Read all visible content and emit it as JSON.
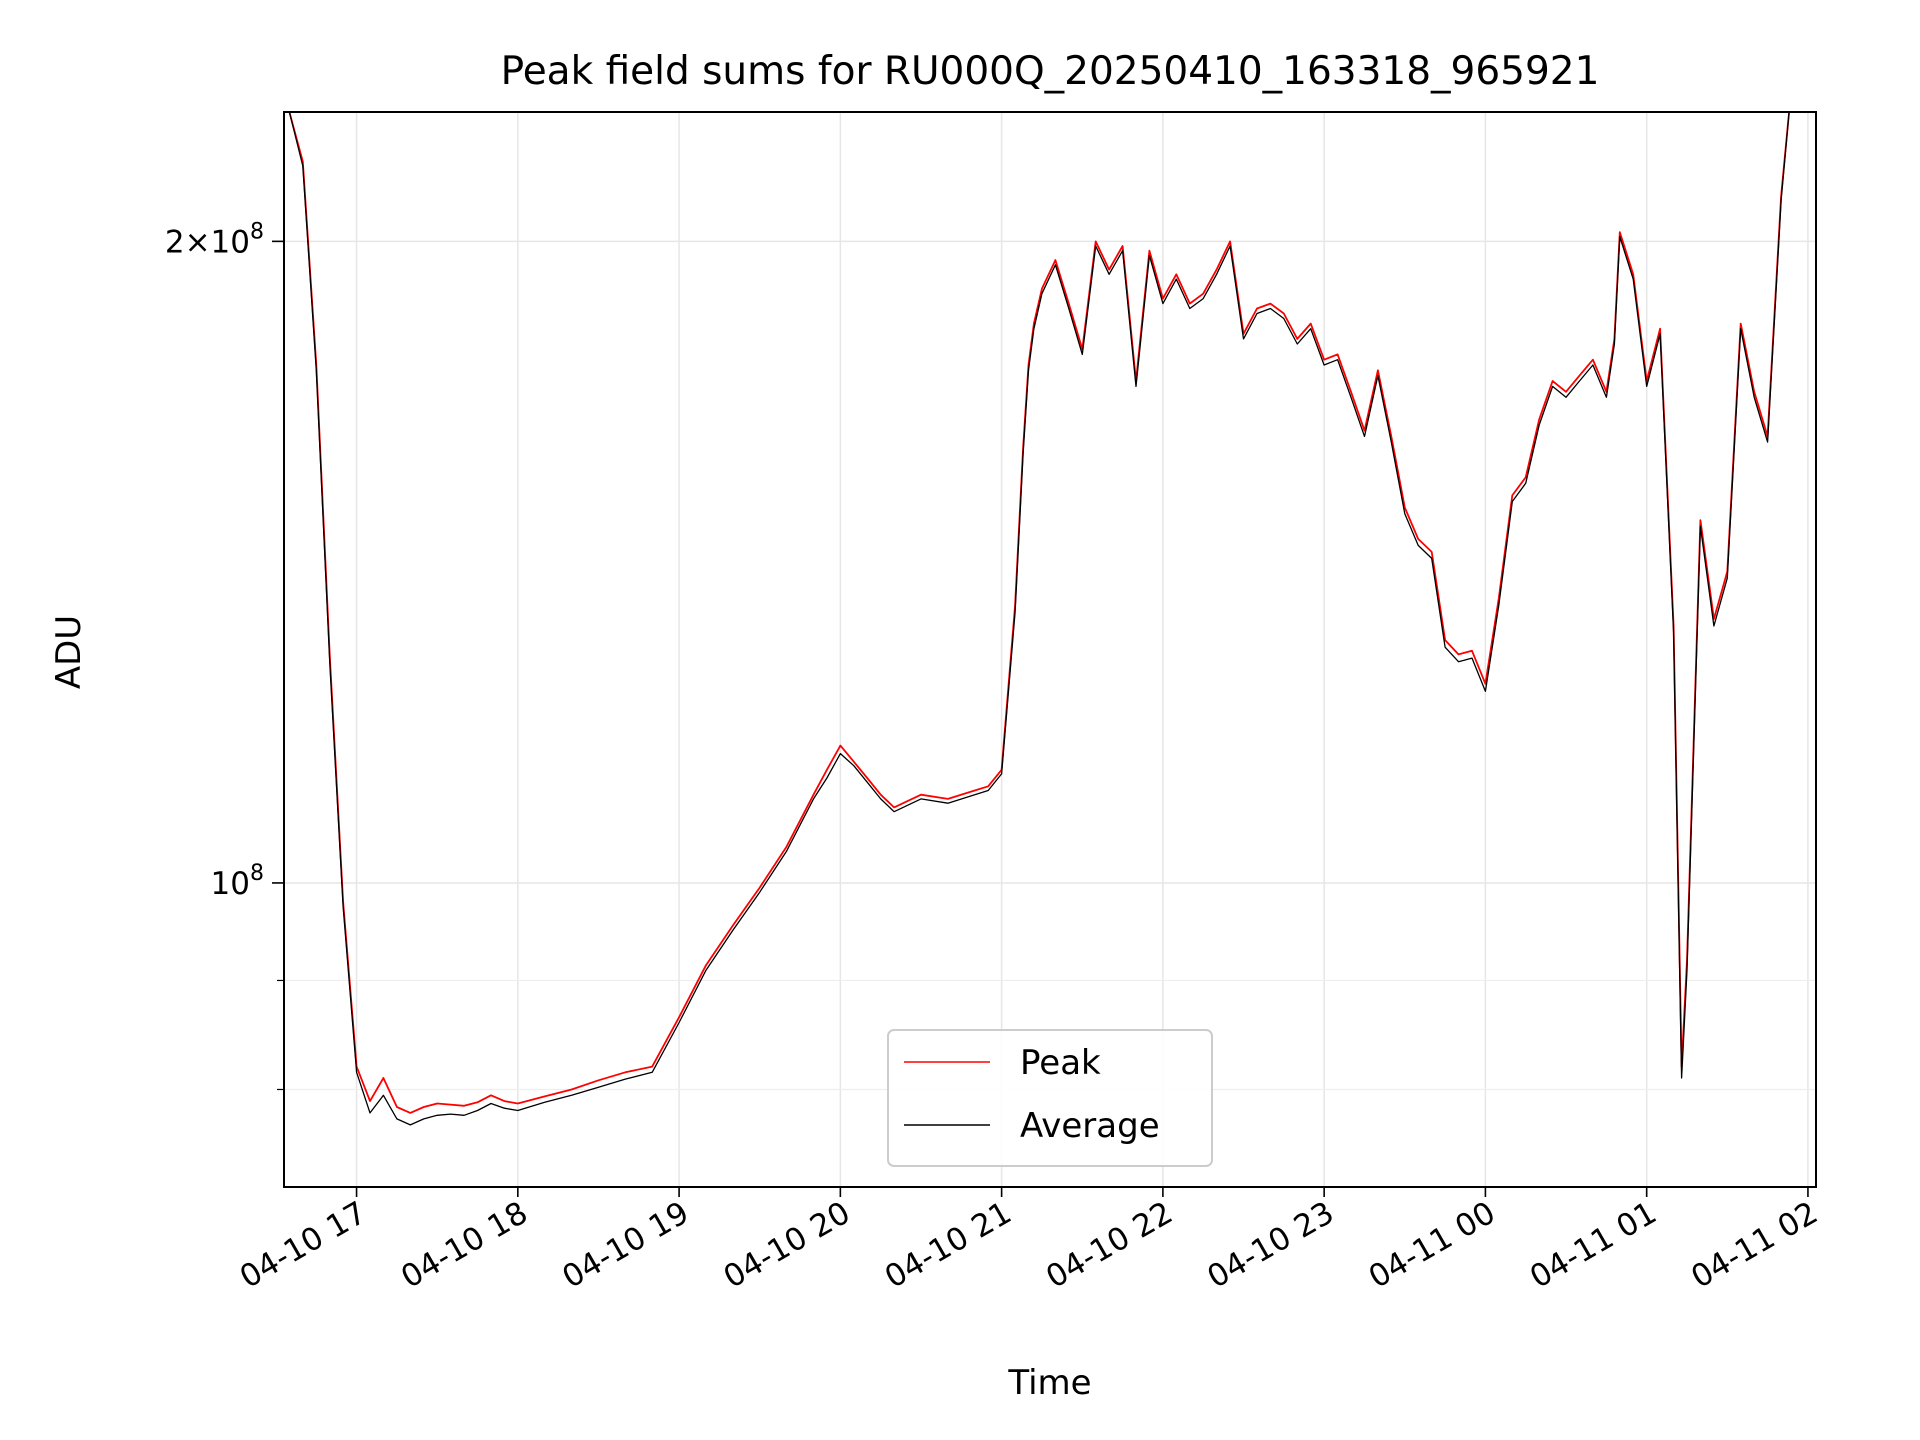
{
  "chart_data": {
    "type": "line",
    "title": "Peak field sums for RU000Q_20250410_163318_965921",
    "xlabel": "Time",
    "ylabel": "ADU",
    "yscale": "log",
    "ylim": [
      72000000,
      230000000
    ],
    "xlim": [
      "2025-04-10 16:33",
      "2025-04-11 02:03"
    ],
    "grid": true,
    "legend_position": "lower-center",
    "x_ticks": [
      "04-10 17",
      "04-10 18",
      "04-10 19",
      "04-10 20",
      "04-10 21",
      "04-10 22",
      "04-10 23",
      "04-11 00",
      "04-11 01",
      "04-11 02"
    ],
    "y_ticks": [
      {
        "value": 100000000,
        "mantissa": "",
        "exponent": "8"
      },
      {
        "value": 200000000,
        "mantissa": "2",
        "exponent": "8"
      }
    ],
    "series": [
      {
        "name": "Peak",
        "color": "#ff0000",
        "x": [
          "2025-04-10 16:35",
          "2025-04-10 16:40",
          "2025-04-10 16:45",
          "2025-04-10 16:50",
          "2025-04-10 16:55",
          "2025-04-10 17:00",
          "2025-04-10 17:05",
          "2025-04-10 17:10",
          "2025-04-10 17:15",
          "2025-04-10 17:20",
          "2025-04-10 17:25",
          "2025-04-10 17:30",
          "2025-04-10 17:35",
          "2025-04-10 17:40",
          "2025-04-10 17:45",
          "2025-04-10 17:50",
          "2025-04-10 17:55",
          "2025-04-10 18:00",
          "2025-04-10 18:10",
          "2025-04-10 18:20",
          "2025-04-10 18:30",
          "2025-04-10 18:40",
          "2025-04-10 18:50",
          "2025-04-10 19:00",
          "2025-04-10 19:10",
          "2025-04-10 19:20",
          "2025-04-10 19:30",
          "2025-04-10 19:40",
          "2025-04-10 19:50",
          "2025-04-10 19:55",
          "2025-04-10 20:00",
          "2025-04-10 20:05",
          "2025-04-10 20:10",
          "2025-04-10 20:15",
          "2025-04-10 20:20",
          "2025-04-10 20:30",
          "2025-04-10 20:40",
          "2025-04-10 20:50",
          "2025-04-10 20:55",
          "2025-04-10 21:00",
          "2025-04-10 21:05",
          "2025-04-10 21:08",
          "2025-04-10 21:10",
          "2025-04-10 21:12",
          "2025-04-10 21:15",
          "2025-04-10 21:20",
          "2025-04-10 21:25",
          "2025-04-10 21:30",
          "2025-04-10 21:35",
          "2025-04-10 21:40",
          "2025-04-10 21:45",
          "2025-04-10 21:50",
          "2025-04-10 21:55",
          "2025-04-10 22:00",
          "2025-04-10 22:05",
          "2025-04-10 22:10",
          "2025-04-10 22:15",
          "2025-04-10 22:20",
          "2025-04-10 22:25",
          "2025-04-10 22:30",
          "2025-04-10 22:35",
          "2025-04-10 22:40",
          "2025-04-10 22:45",
          "2025-04-10 22:50",
          "2025-04-10 22:55",
          "2025-04-10 23:00",
          "2025-04-10 23:05",
          "2025-04-10 23:10",
          "2025-04-10 23:15",
          "2025-04-10 23:20",
          "2025-04-10 23:25",
          "2025-04-10 23:30",
          "2025-04-10 23:35",
          "2025-04-10 23:40",
          "2025-04-10 23:45",
          "2025-04-10 23:50",
          "2025-04-10 23:55",
          "2025-04-11 00:00",
          "2025-04-11 00:05",
          "2025-04-11 00:10",
          "2025-04-11 00:15",
          "2025-04-11 00:20",
          "2025-04-11 00:25",
          "2025-04-11 00:30",
          "2025-04-11 00:35",
          "2025-04-11 00:40",
          "2025-04-11 00:45",
          "2025-04-11 00:48",
          "2025-04-11 00:50",
          "2025-04-11 00:55",
          "2025-04-11 01:00",
          "2025-04-11 01:05",
          "2025-04-11 01:10",
          "2025-04-11 01:13",
          "2025-04-11 01:15",
          "2025-04-11 01:20",
          "2025-04-11 01:25",
          "2025-04-11 01:30",
          "2025-04-11 01:35",
          "2025-04-11 01:40",
          "2025-04-11 01:45",
          "2025-04-11 01:50",
          "2025-04-11 01:53"
        ],
        "values": [
          230000000,
          218000000,
          175000000,
          128000000,
          98000000,
          82000000,
          79000000,
          81000000,
          78500000,
          78000000,
          78500000,
          78800000,
          78700000,
          78600000,
          78900000,
          79500000,
          79000000,
          78800000,
          79400000,
          80000000,
          80800000,
          81500000,
          82000000,
          86500000,
          91500000,
          95500000,
          99500000,
          104000000,
          110000000,
          113000000,
          116000000,
          114000000,
          112000000,
          110000000,
          108500000,
          110000000,
          109500000,
          110500000,
          111000000,
          113000000,
          135000000,
          160000000,
          175000000,
          183000000,
          190000000,
          196000000,
          187000000,
          178000000,
          200000000,
          194000000,
          199000000,
          172000000,
          198000000,
          188000000,
          193000000,
          187000000,
          189000000,
          194000000,
          200000000,
          181000000,
          186000000,
          187000000,
          185000000,
          180000000,
          183000000,
          176000000,
          177000000,
          170000000,
          163000000,
          174000000,
          162000000,
          150000000,
          145000000,
          143000000,
          130000000,
          128000000,
          128500000,
          124000000,
          136000000,
          152000000,
          155000000,
          165000000,
          172000000,
          170000000,
          173000000,
          176000000,
          170000000,
          180000000,
          202000000,
          193000000,
          172000000,
          182000000,
          132000000,
          82000000,
          92000000,
          148000000,
          133000000,
          140000000,
          183000000,
          170000000,
          162000000,
          210000000,
          230000000
        ]
      },
      {
        "name": "Average",
        "color": "#000000",
        "x": [
          "2025-04-10 16:35",
          "2025-04-10 16:40",
          "2025-04-10 16:45",
          "2025-04-10 16:50",
          "2025-04-10 16:55",
          "2025-04-10 17:00",
          "2025-04-10 17:05",
          "2025-04-10 17:10",
          "2025-04-10 17:15",
          "2025-04-10 17:20",
          "2025-04-10 17:25",
          "2025-04-10 17:30",
          "2025-04-10 17:35",
          "2025-04-10 17:40",
          "2025-04-10 17:45",
          "2025-04-10 17:50",
          "2025-04-10 17:55",
          "2025-04-10 18:00",
          "2025-04-10 18:10",
          "2025-04-10 18:20",
          "2025-04-10 18:30",
          "2025-04-10 18:40",
          "2025-04-10 18:50",
          "2025-04-10 19:00",
          "2025-04-10 19:10",
          "2025-04-10 19:20",
          "2025-04-10 19:30",
          "2025-04-10 19:40",
          "2025-04-10 19:50",
          "2025-04-10 19:55",
          "2025-04-10 20:00",
          "2025-04-10 20:05",
          "2025-04-10 20:10",
          "2025-04-10 20:15",
          "2025-04-10 20:20",
          "2025-04-10 20:30",
          "2025-04-10 20:40",
          "2025-04-10 20:50",
          "2025-04-10 20:55",
          "2025-04-10 21:00",
          "2025-04-10 21:05",
          "2025-04-10 21:08",
          "2025-04-10 21:10",
          "2025-04-10 21:12",
          "2025-04-10 21:15",
          "2025-04-10 21:20",
          "2025-04-10 21:25",
          "2025-04-10 21:30",
          "2025-04-10 21:35",
          "2025-04-10 21:40",
          "2025-04-10 21:45",
          "2025-04-10 21:50",
          "2025-04-10 21:55",
          "2025-04-10 22:00",
          "2025-04-10 22:05",
          "2025-04-10 22:10",
          "2025-04-10 22:15",
          "2025-04-10 22:20",
          "2025-04-10 22:25",
          "2025-04-10 22:30",
          "2025-04-10 22:35",
          "2025-04-10 22:40",
          "2025-04-10 22:45",
          "2025-04-10 22:50",
          "2025-04-10 22:55",
          "2025-04-10 23:00",
          "2025-04-10 23:05",
          "2025-04-10 23:10",
          "2025-04-10 23:15",
          "2025-04-10 23:20",
          "2025-04-10 23:25",
          "2025-04-10 23:30",
          "2025-04-10 23:35",
          "2025-04-10 23:40",
          "2025-04-10 23:45",
          "2025-04-10 23:50",
          "2025-04-10 23:55",
          "2025-04-11 00:00",
          "2025-04-11 00:05",
          "2025-04-11 00:10",
          "2025-04-11 00:15",
          "2025-04-11 00:20",
          "2025-04-11 00:25",
          "2025-04-11 00:30",
          "2025-04-11 00:35",
          "2025-04-11 00:40",
          "2025-04-11 00:45",
          "2025-04-11 00:48",
          "2025-04-11 00:50",
          "2025-04-11 00:55",
          "2025-04-11 01:00",
          "2025-04-11 01:05",
          "2025-04-11 01:10",
          "2025-04-11 01:13",
          "2025-04-11 01:15",
          "2025-04-11 01:20",
          "2025-04-11 01:25",
          "2025-04-11 01:30",
          "2025-04-11 01:35",
          "2025-04-11 01:40",
          "2025-04-11 01:45",
          "2025-04-11 01:50",
          "2025-04-11 01:53"
        ],
        "values": [
          230000000,
          217000000,
          174000000,
          127000000,
          97500000,
          81500000,
          78000000,
          79500000,
          77500000,
          77000000,
          77500000,
          77800000,
          77900000,
          77800000,
          78200000,
          78800000,
          78400000,
          78200000,
          78900000,
          79500000,
          80200000,
          80900000,
          81500000,
          86000000,
          91000000,
          95000000,
          99000000,
          103500000,
          109500000,
          112000000,
          115000000,
          113500000,
          111500000,
          109500000,
          108000000,
          109500000,
          109000000,
          110000000,
          110500000,
          112500000,
          134000000,
          159000000,
          174000000,
          182000000,
          189000000,
          195000000,
          186000000,
          177000000,
          199000000,
          193000000,
          198000000,
          171000000,
          197000000,
          187000000,
          192000000,
          186000000,
          188000000,
          193000000,
          199000000,
          180000000,
          185000000,
          186000000,
          184000000,
          179000000,
          182000000,
          175000000,
          176000000,
          169000000,
          162000000,
          173000000,
          161000000,
          149000000,
          144000000,
          142000000,
          129000000,
          127000000,
          127500000,
          123000000,
          135000000,
          151000000,
          154000000,
          164000000,
          171000000,
          169000000,
          172000000,
          175000000,
          169000000,
          179000000,
          201000000,
          192000000,
          171000000,
          181000000,
          131000000,
          81000000,
          91000000,
          147000000,
          132000000,
          139000000,
          182000000,
          169000000,
          161000000,
          209000000,
          230000000
        ]
      }
    ]
  }
}
